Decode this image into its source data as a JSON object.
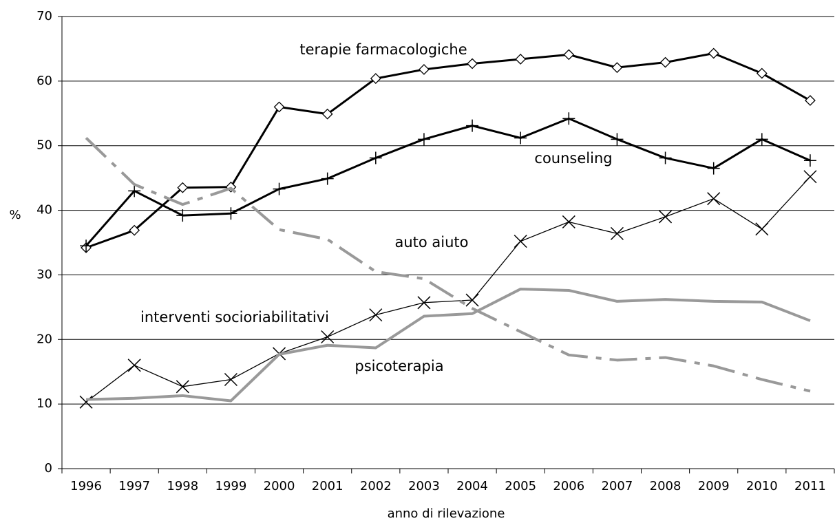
{
  "chart_data": {
    "type": "line",
    "xlabel": "anno di rilevazione",
    "ylabel": "%",
    "categories": [
      "1996",
      "1997",
      "1998",
      "1999",
      "2000",
      "2001",
      "2002",
      "2003",
      "2004",
      "2005",
      "2006",
      "2007",
      "2008",
      "2009",
      "2010",
      "2011"
    ],
    "ylim": [
      0,
      70
    ],
    "yticks": [
      0,
      10,
      20,
      30,
      40,
      50,
      60,
      70
    ],
    "grid": true,
    "series": [
      {
        "name": "terapie farmacologiche",
        "color": "#000000",
        "marker": "diamond",
        "linewidth": 3,
        "dash": "solid",
        "values": [
          34.2,
          36.9,
          43.5,
          43.6,
          56.0,
          54.9,
          60.4,
          61.8,
          62.7,
          63.4,
          64.1,
          62.1,
          62.9,
          64.3,
          61.2,
          57.0
        ]
      },
      {
        "name": "counseling",
        "color": "#000000",
        "marker": "plus",
        "linewidth": 3,
        "dash": "solid",
        "values": [
          34.5,
          43.0,
          39.2,
          39.5,
          43.3,
          44.9,
          48.1,
          51.0,
          53.1,
          51.2,
          54.2,
          51.0,
          48.1,
          46.5,
          51.0,
          47.7
        ]
      },
      {
        "name": "interventi socioriabilitativi",
        "color": "#000000",
        "marker": "x",
        "linewidth": 1.3,
        "dash": "solid",
        "values": [
          10.3,
          16.0,
          12.7,
          13.8,
          17.8,
          20.4,
          23.8,
          25.7,
          26.1,
          35.2,
          38.2,
          36.4,
          39.0,
          41.8,
          37.1,
          45.2
        ]
      },
      {
        "name": "psicoterapia",
        "color": "#999999",
        "marker": "none",
        "linewidth": 4,
        "dash": "solid",
        "values": [
          10.7,
          10.9,
          11.3,
          10.5,
          17.7,
          19.1,
          18.7,
          23.6,
          24.0,
          27.8,
          27.6,
          25.9,
          26.2,
          25.9,
          25.8,
          22.9
        ]
      },
      {
        "name": "auto aiuto",
        "color": "#999999",
        "marker": "none",
        "linewidth": 4,
        "dash": "dashdot",
        "values": [
          51.2,
          44.0,
          40.9,
          43.4,
          37.0,
          35.5,
          30.5,
          29.4,
          24.8,
          21.2,
          17.6,
          16.8,
          17.2,
          15.9,
          13.8,
          12.0
        ]
      }
    ]
  }
}
